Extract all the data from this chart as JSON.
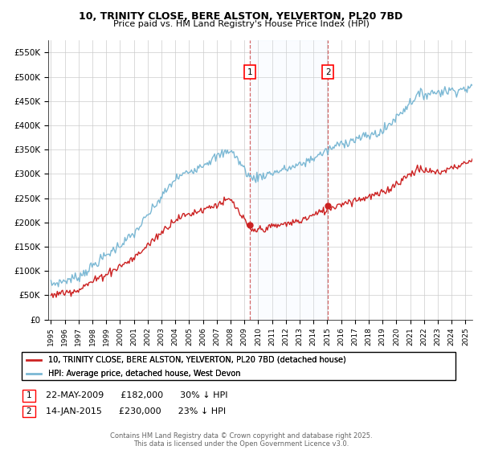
{
  "title_line1": "10, TRINITY CLOSE, BERE ALSTON, YELVERTON, PL20 7BD",
  "title_line2": "Price paid vs. HM Land Registry's House Price Index (HPI)",
  "ylabel_ticks": [
    "£0",
    "£50K",
    "£100K",
    "£150K",
    "£200K",
    "£250K",
    "£300K",
    "£350K",
    "£400K",
    "£450K",
    "£500K",
    "£550K"
  ],
  "ytick_values": [
    0,
    50000,
    100000,
    150000,
    200000,
    250000,
    300000,
    350000,
    400000,
    450000,
    500000,
    550000
  ],
  "ylim": [
    0,
    575000
  ],
  "xlim_start": 1994.8,
  "xlim_end": 2025.5,
  "hpi_color": "#7bb8d4",
  "price_color": "#cc2222",
  "sale1_date": "22-MAY-2009",
  "sale1_price": 182000,
  "sale1_hpi_pct": "30%",
  "sale2_date": "14-JAN-2015",
  "sale2_price": 230000,
  "sale2_hpi_pct": "23%",
  "sale1_x": 2009.39,
  "sale2_x": 2015.04,
  "legend_label1": "10, TRINITY CLOSE, BERE ALSTON, YELVERTON, PL20 7BD (detached house)",
  "legend_label2": "HPI: Average price, detached house, West Devon",
  "footer": "Contains HM Land Registry data © Crown copyright and database right 2025.\nThis data is licensed under the Open Government Licence v3.0.",
  "bg_color": "#ffffff",
  "grid_color": "#cccccc",
  "shade_color": "#ddeeff"
}
